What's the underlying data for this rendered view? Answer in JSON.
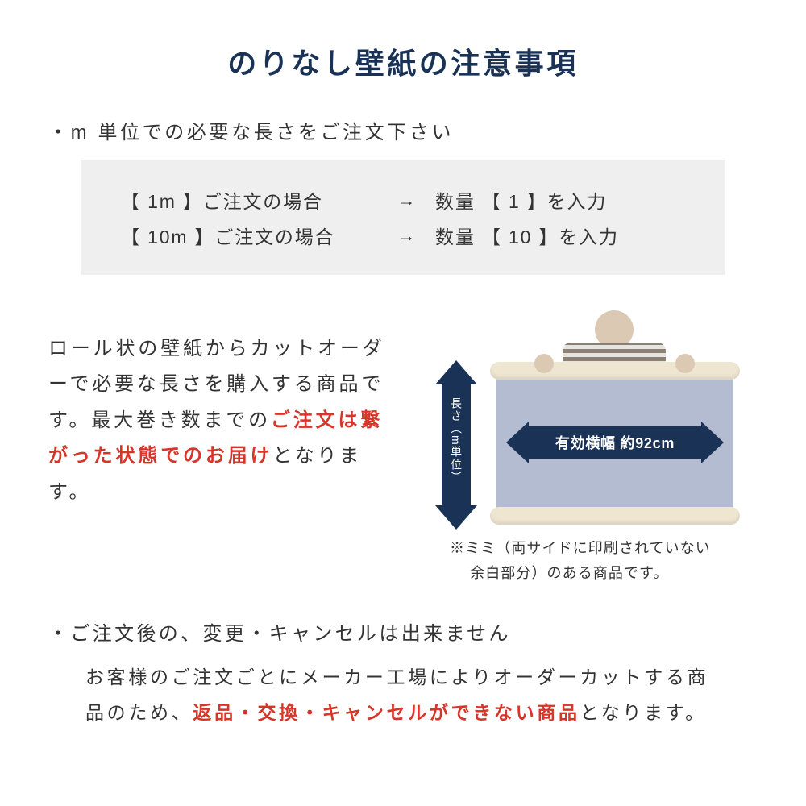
{
  "colors": {
    "title": "#1a3256",
    "text": "#333333",
    "highlight": "#d6352a",
    "example_bg": "#efefef",
    "arrow_fill": "#1a3256",
    "arrow_text": "#ffffff",
    "paper": "#b3bcd1",
    "roll": "#efe6d2",
    "skin": "#dcc9b4",
    "page_bg": "#ffffff"
  },
  "title": "のりなし壁紙の注意事項",
  "section1": {
    "heading": "・m 単位での必要な長さをご注文下さい",
    "examples": [
      {
        "left": "【 1m 】ご注文の場合",
        "arrow": "→",
        "right": "数量 【 1 】を入力"
      },
      {
        "left": "【 10m 】ご注文の場合",
        "arrow": "→",
        "right": "数量 【 10 】を入力"
      }
    ],
    "description": {
      "part1": "ロール状の壁紙からカットオーダーで必要な長さを購入する商品です。最大巻き数までの",
      "highlight": "ご注文は繋がった状態でのお届け",
      "part2": "となります。"
    },
    "diagram": {
      "v_arrow_label": "長さ（m単位）",
      "h_arrow_label": "有効横幅 約92cm",
      "note_line1": "※ミミ（両サイドに印刷されていない",
      "note_line2": "　 余白部分）のある商品です。"
    }
  },
  "section2": {
    "heading": "・ご注文後の、変更・キャンセルは出来ません",
    "body": {
      "part1": "お客様のご注文ごとにメーカー工場によりオーダーカットする商品のため、",
      "highlight": "返品・交換・キャンセルができない商品",
      "part2": "となります。"
    }
  }
}
